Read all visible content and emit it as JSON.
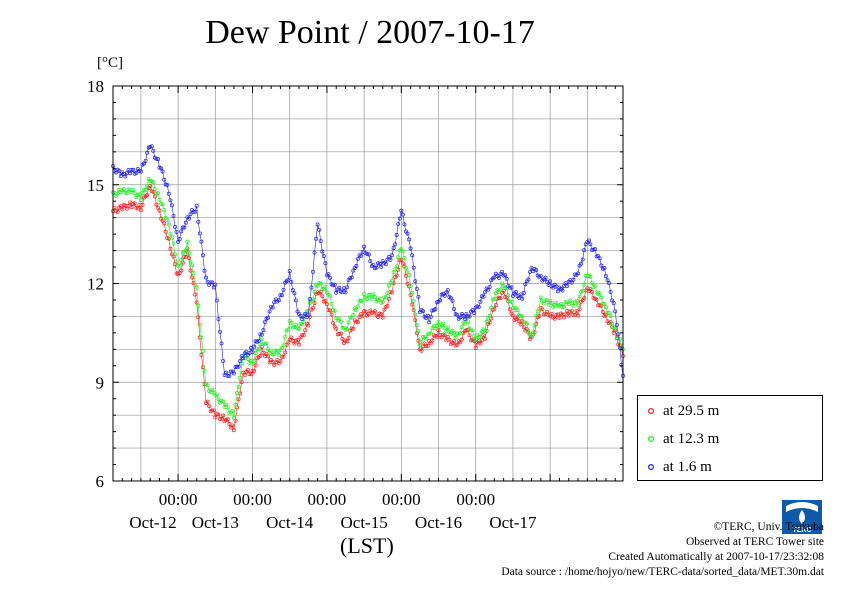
{
  "page": {
    "title": "Dew Point / 2007-10-17",
    "unit_label": "[°C]",
    "x_axis_label": "(LST)",
    "legend": [
      "at 29.5 m",
      "at 12.3 m",
      "at 1.6 m"
    ],
    "credits": [
      "©TERC, Univ. Tsukuba",
      "Observed at TERC Tower site",
      "Created Automatically at 2007-10-17/23:32:08",
      "Data source : /home/hojyo/new/TERC-data/sorted_data/MET.30m.dat"
    ],
    "logo_text": "TERC"
  },
  "chart_data": {
    "type": "line",
    "title": "Dew Point / 2007-10-17",
    "ylabel": "[°C]",
    "xlabel": "(LST)",
    "ylim": [
      6,
      18
    ],
    "yticks": [
      6,
      9,
      12,
      15,
      18
    ],
    "xlim": [
      "2007-10-11 03:00",
      "2007-10-17 23:30"
    ],
    "xtick_times": [
      "00:00",
      "00:00",
      "00:00",
      "00:00",
      "00:00"
    ],
    "xtick_dates": [
      "Oct-12",
      "Oct-13",
      "Oct-14",
      "Oct-15",
      "Oct-16",
      "Oct-17"
    ],
    "grid": true,
    "legend_position": "right-bottom",
    "colors": [
      "#ff2020",
      "#22ee22",
      "#2020ff"
    ],
    "x": [
      "2007-10-11 03:00",
      "2007-10-11 06:00",
      "2007-10-11 09:00",
      "2007-10-11 12:00",
      "2007-10-11 15:00",
      "2007-10-11 18:00",
      "2007-10-11 21:00",
      "2007-10-12 00:00",
      "2007-10-12 03:00",
      "2007-10-12 06:00",
      "2007-10-12 09:00",
      "2007-10-12 12:00",
      "2007-10-12 15:00",
      "2007-10-12 18:00",
      "2007-10-12 21:00",
      "2007-10-13 00:00",
      "2007-10-13 03:00",
      "2007-10-13 06:00",
      "2007-10-13 09:00",
      "2007-10-13 12:00",
      "2007-10-13 15:00",
      "2007-10-13 18:00",
      "2007-10-13 21:00",
      "2007-10-14 00:00",
      "2007-10-14 03:00",
      "2007-10-14 06:00",
      "2007-10-14 09:00",
      "2007-10-14 12:00",
      "2007-10-14 15:00",
      "2007-10-14 18:00",
      "2007-10-14 21:00",
      "2007-10-15 00:00",
      "2007-10-15 03:00",
      "2007-10-15 06:00",
      "2007-10-15 09:00",
      "2007-10-15 12:00",
      "2007-10-15 15:00",
      "2007-10-15 18:00",
      "2007-10-15 21:00",
      "2007-10-16 00:00",
      "2007-10-16 03:00",
      "2007-10-16 06:00",
      "2007-10-16 09:00",
      "2007-10-16 12:00",
      "2007-10-16 15:00",
      "2007-10-16 18:00",
      "2007-10-16 21:00",
      "2007-10-17 00:00",
      "2007-10-17 03:00",
      "2007-10-17 06:00",
      "2007-10-17 09:00",
      "2007-10-17 12:00",
      "2007-10-17 15:00",
      "2007-10-17 18:00",
      "2007-10-17 21:00",
      "2007-10-17 23:30"
    ],
    "series": [
      {
        "name": "at 29.5 m",
        "values": [
          14.2,
          14.3,
          14.4,
          14.3,
          15.0,
          14.2,
          13.3,
          12.2,
          13.0,
          11.4,
          8.4,
          8.0,
          7.9,
          7.6,
          9.3,
          9.3,
          10.0,
          9.6,
          9.6,
          10.3,
          10.2,
          10.8,
          11.8,
          11.4,
          10.6,
          10.2,
          10.8,
          11.1,
          11.1,
          11.0,
          11.8,
          12.8,
          11.7,
          10.0,
          10.2,
          10.5,
          10.3,
          10.1,
          10.6,
          10.1,
          10.4,
          11.3,
          11.8,
          11.0,
          10.8,
          10.3,
          11.2,
          11.0,
          11.0,
          11.1,
          11.1,
          11.9,
          11.5,
          11.0,
          10.5,
          9.8
        ]
      },
      {
        "name": "at 12.3 m",
        "values": [
          14.7,
          14.8,
          14.8,
          14.6,
          15.2,
          14.6,
          13.8,
          12.5,
          13.2,
          11.8,
          8.9,
          8.6,
          8.3,
          8.0,
          9.8,
          9.6,
          10.3,
          9.9,
          9.9,
          10.8,
          10.6,
          11.2,
          12.0,
          11.8,
          11.0,
          10.6,
          11.2,
          11.6,
          11.6,
          11.4,
          12.1,
          13.1,
          12.0,
          10.2,
          10.5,
          10.8,
          10.6,
          10.4,
          10.9,
          10.3,
          10.6,
          11.6,
          12.0,
          11.3,
          11.0,
          10.4,
          11.5,
          11.4,
          11.3,
          11.4,
          11.4,
          12.3,
          11.8,
          11.3,
          10.6,
          10.0
        ]
      },
      {
        "name": "at 1.6 m",
        "values": [
          15.5,
          15.3,
          15.4,
          15.4,
          16.2,
          15.6,
          14.8,
          13.3,
          14.0,
          14.3,
          12.1,
          11.9,
          9.2,
          9.3,
          9.8,
          10.0,
          10.5,
          11.3,
          11.6,
          12.3,
          11.0,
          11.0,
          13.8,
          12.3,
          11.8,
          11.8,
          12.5,
          13.1,
          12.5,
          12.6,
          12.8,
          14.2,
          13.1,
          11.2,
          10.9,
          11.5,
          11.8,
          11.0,
          11.0,
          11.2,
          11.7,
          12.2,
          12.3,
          11.7,
          11.6,
          12.5,
          12.2,
          12.0,
          11.8,
          12.0,
          12.3,
          13.3,
          12.9,
          12.3,
          11.2,
          9.2
        ]
      }
    ]
  }
}
